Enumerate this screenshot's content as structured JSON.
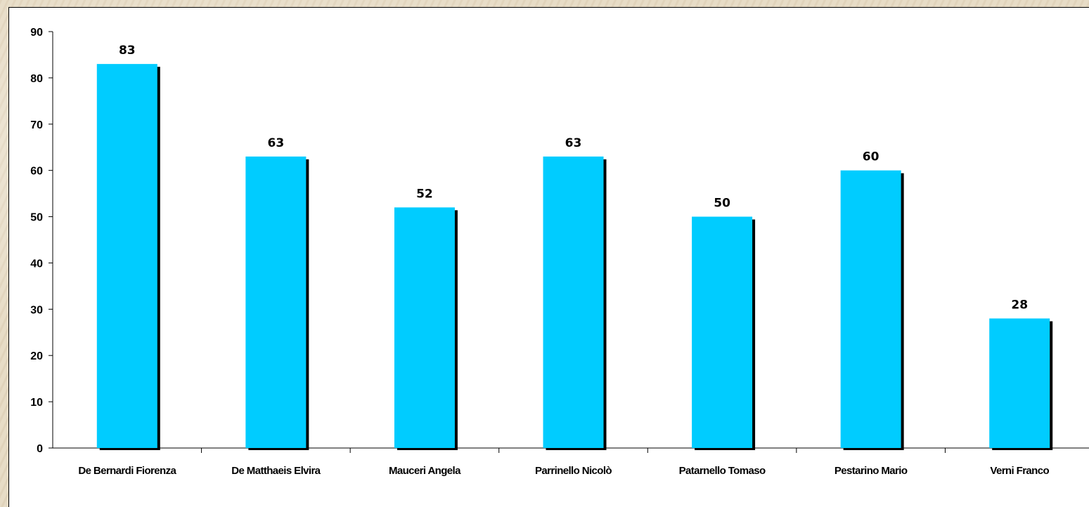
{
  "chart_data": {
    "type": "bar",
    "categories": [
      "De Bernardi Fiorenza",
      "De Matthaeis Elvira",
      "Mauceri Angela",
      "Parrinello Nicolò",
      "Patarnello Tomaso",
      "Pestarino Mario",
      "Verni Franco"
    ],
    "values": [
      83,
      63,
      52,
      63,
      50,
      60,
      28
    ],
    "yticks": [
      "0",
      "10",
      "20",
      "30",
      "40",
      "50",
      "60",
      "70",
      "80",
      "90"
    ],
    "ylim": [
      0,
      90
    ],
    "title": "",
    "xlabel": "",
    "ylabel": "",
    "grid": false,
    "bar_color": "#00ccff",
    "shadow_color": "#000000"
  }
}
